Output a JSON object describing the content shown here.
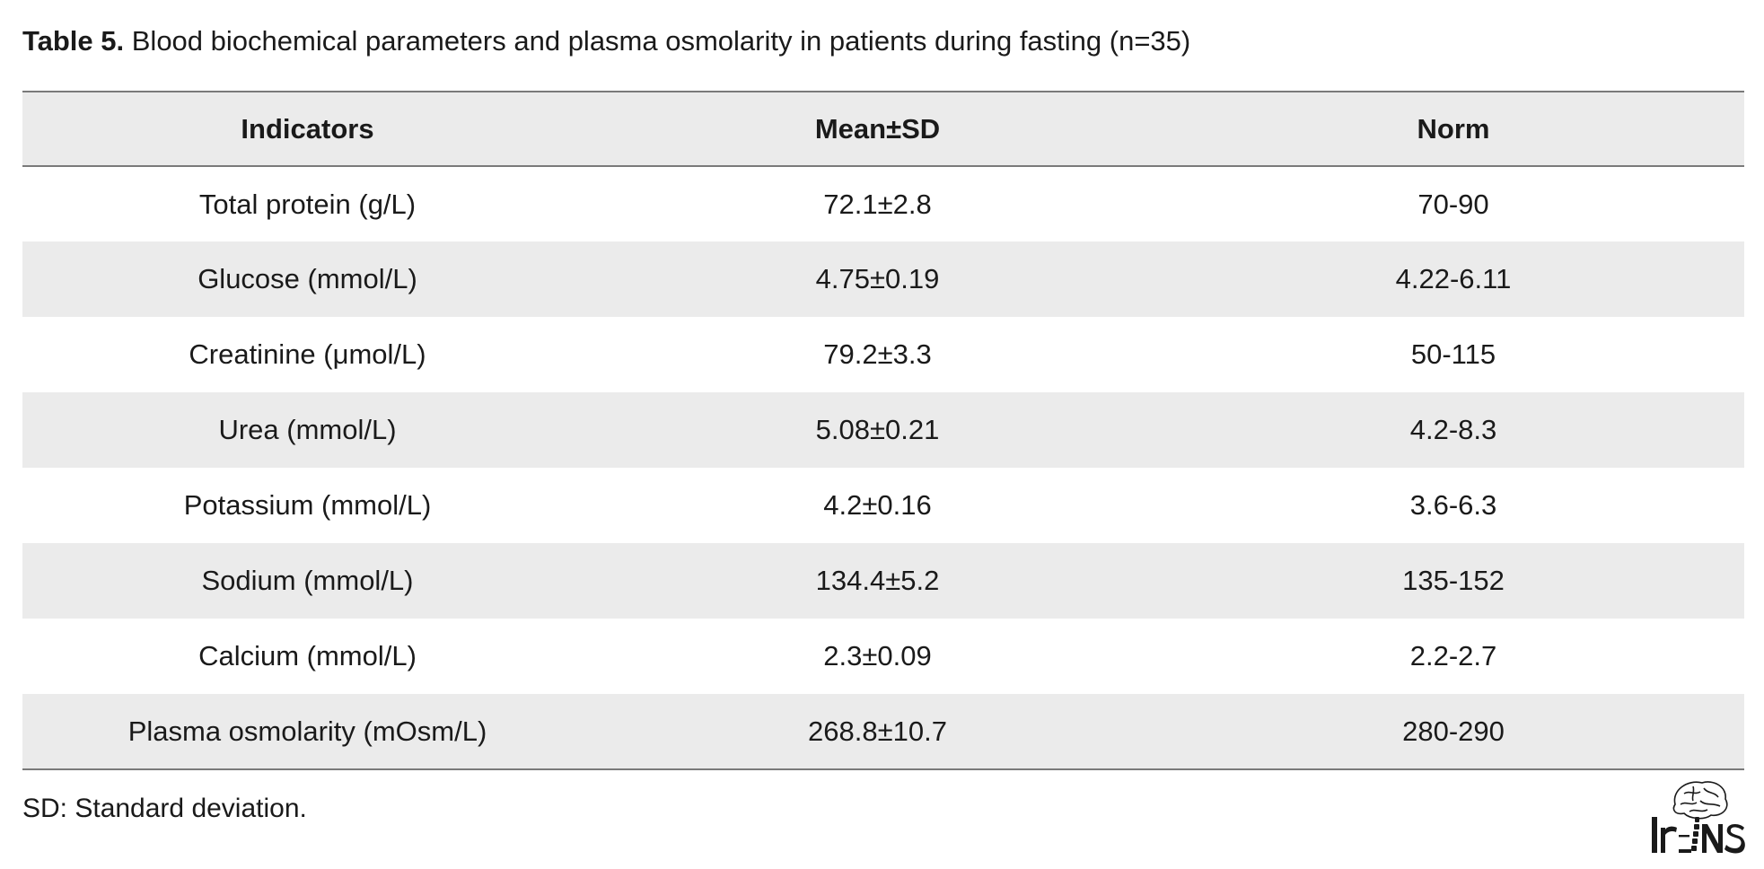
{
  "caption": {
    "label": "Table 5.",
    "text": " Blood biochemical parameters and plasma osmolarity in patients during fasting (n=35)"
  },
  "table": {
    "headers": [
      "Indicators",
      "Mean±SD",
      "Norm"
    ],
    "rows": [
      [
        "Total protein (g/L)",
        "72.1±2.8",
        "70-90"
      ],
      [
        "Glucose (mmol/L)",
        "4.75±0.19",
        "4.22-6.11"
      ],
      [
        "Creatinine (μmol/L)",
        "79.2±3.3",
        "50-115"
      ],
      [
        "Urea (mmol/L)",
        "5.08±0.21",
        "4.2-8.3"
      ],
      [
        "Potassium (mmol/L)",
        "4.2±0.16",
        "3.6-6.3"
      ],
      [
        "Sodium (mmol/L)",
        "134.4±5.2",
        "135-152"
      ],
      [
        "Calcium (mmol/L)",
        "2.3±0.09",
        "2.2-2.7"
      ],
      [
        "Plasma osmolarity (mOsm/L)",
        "268.8±10.7",
        "280-290"
      ]
    ]
  },
  "footnote": "SD: Standard deviation.",
  "logo": {
    "icon": "irjns-brain-logo-icon",
    "text": "IrJNS"
  },
  "colors": {
    "shaded_row": "#ebebeb",
    "rule": "#7a7a7a",
    "text": "#1a1a1a"
  }
}
